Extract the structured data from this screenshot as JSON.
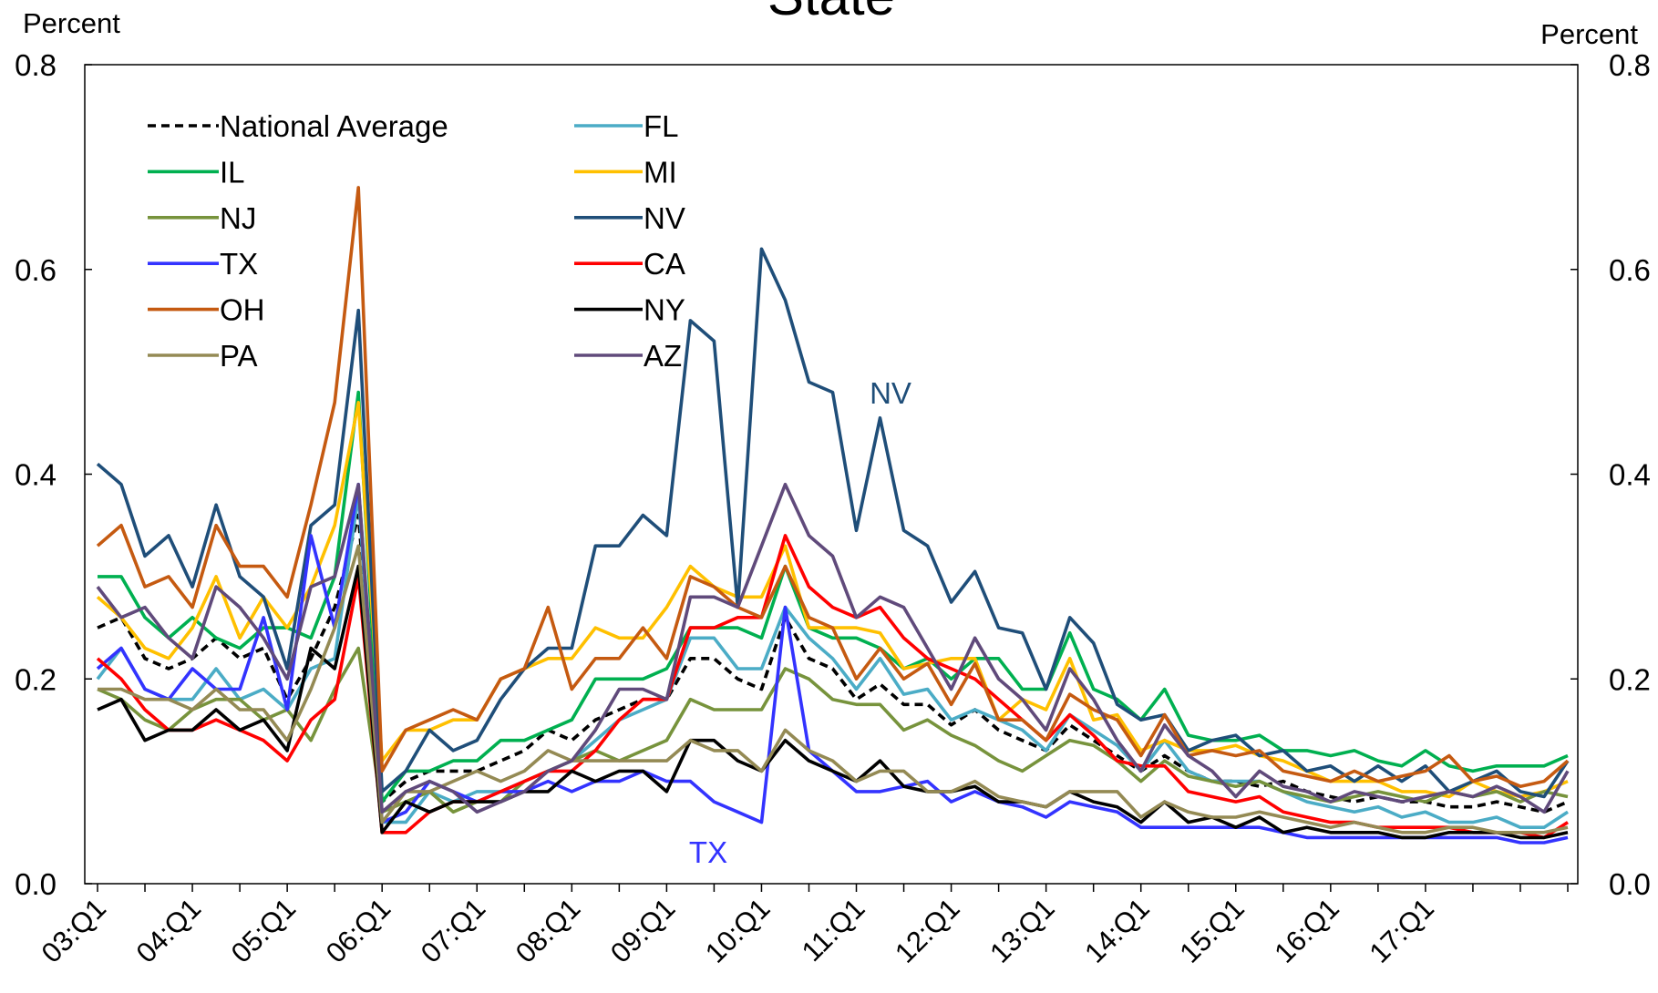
{
  "chart_data": {
    "type": "line",
    "title": "State",
    "y_label": "Percent",
    "y2_label": "Percent",
    "categories": [
      "03:Q1",
      null,
      null,
      null,
      "04:Q1",
      null,
      null,
      null,
      "05:Q1",
      null,
      null,
      null,
      "06:Q1",
      null,
      null,
      null,
      "07:Q1",
      null,
      null,
      null,
      "08:Q1",
      null,
      null,
      null,
      "09:Q1",
      null,
      null,
      null,
      "10:Q1",
      null,
      null,
      null,
      "11:Q1",
      null,
      null,
      null,
      "12:Q1",
      null,
      null,
      null,
      "13:Q1",
      null,
      null,
      null,
      "14:Q1",
      null,
      null,
      null,
      "15:Q1",
      null,
      null,
      null,
      "16:Q1",
      null,
      null,
      null,
      "17:Q1",
      null,
      null,
      null,
      null,
      null,
      null
    ],
    "ylim": [
      0,
      0.8
    ],
    "yticks": [
      {
        "value": 0,
        "label": "0.0"
      },
      0.2,
      0.4,
      0.6,
      0.8
    ],
    "y2lim": [
      0,
      0.8
    ],
    "y2ticks": [
      {
        "value": 0,
        "label": "0.0"
      },
      0.2,
      0.4,
      0.6,
      0.8
    ],
    "grid": false,
    "legend_position": "upper-left",
    "annotations": [
      {
        "text": "NV",
        "color": "#1f4e79"
      },
      {
        "text": "TX",
        "color": "#3333ff"
      }
    ],
    "series": [
      {
        "name": "National Average",
        "color": "#000000",
        "dashed": true,
        "values": [
          0.25,
          0.26,
          0.22,
          0.21,
          0.22,
          0.24,
          0.22,
          0.23,
          0.18,
          0.22,
          0.27,
          0.36,
          0.08,
          0.1,
          0.11,
          0.11,
          0.11,
          0.12,
          0.13,
          0.15,
          0.14,
          0.16,
          0.17,
          0.18,
          0.18,
          0.22,
          0.22,
          0.2,
          0.19,
          0.26,
          0.22,
          0.21,
          0.18,
          0.195,
          0.175,
          0.175,
          0.155,
          0.17,
          0.15,
          0.14,
          0.13,
          0.155,
          0.14,
          0.125,
          0.11,
          0.125,
          0.11,
          0.1,
          0.1,
          0.095,
          0.1,
          0.09,
          0.085,
          0.08,
          0.085,
          0.08,
          0.08,
          0.075,
          0.075,
          0.08,
          0.075,
          0.07,
          0.08
        ]
      },
      {
        "name": "FL",
        "color": "#4bacc6",
        "values": [
          0.2,
          0.23,
          0.19,
          0.18,
          0.18,
          0.21,
          0.18,
          0.19,
          0.17,
          0.21,
          0.22,
          0.38,
          0.06,
          0.06,
          0.09,
          0.08,
          0.09,
          0.09,
          0.1,
          0.11,
          0.12,
          0.14,
          0.16,
          0.17,
          0.18,
          0.24,
          0.24,
          0.21,
          0.21,
          0.27,
          0.24,
          0.22,
          0.19,
          0.22,
          0.185,
          0.19,
          0.16,
          0.17,
          0.16,
          0.15,
          0.13,
          0.165,
          0.15,
          0.135,
          0.11,
          0.14,
          0.11,
          0.1,
          0.1,
          0.1,
          0.09,
          0.08,
          0.075,
          0.07,
          0.075,
          0.065,
          0.07,
          0.06,
          0.06,
          0.065,
          0.055,
          0.055,
          0.07
        ]
      },
      {
        "name": "IL",
        "color": "#00b050",
        "values": [
          0.3,
          0.3,
          0.26,
          0.24,
          0.26,
          0.24,
          0.23,
          0.25,
          0.25,
          0.24,
          0.3,
          0.48,
          0.08,
          0.11,
          0.11,
          0.12,
          0.12,
          0.14,
          0.14,
          0.15,
          0.16,
          0.2,
          0.2,
          0.2,
          0.21,
          0.25,
          0.25,
          0.25,
          0.24,
          0.31,
          0.25,
          0.24,
          0.24,
          0.23,
          0.21,
          0.22,
          0.2,
          0.22,
          0.22,
          0.19,
          0.19,
          0.245,
          0.19,
          0.18,
          0.16,
          0.19,
          0.145,
          0.14,
          0.14,
          0.145,
          0.13,
          0.13,
          0.125,
          0.13,
          0.12,
          0.115,
          0.13,
          0.115,
          0.11,
          0.115,
          0.115,
          0.115,
          0.125
        ]
      },
      {
        "name": "MI",
        "color": "#ffc000",
        "values": [
          0.28,
          0.26,
          0.23,
          0.22,
          0.25,
          0.3,
          0.24,
          0.28,
          0.25,
          0.29,
          0.35,
          0.47,
          0.12,
          0.15,
          0.15,
          0.16,
          0.16,
          0.2,
          0.21,
          0.22,
          0.22,
          0.25,
          0.24,
          0.24,
          0.27,
          0.31,
          0.29,
          0.28,
          0.28,
          0.33,
          0.25,
          0.25,
          0.25,
          0.245,
          0.21,
          0.215,
          0.22,
          0.22,
          0.16,
          0.18,
          0.17,
          0.22,
          0.16,
          0.165,
          0.13,
          0.14,
          0.13,
          0.13,
          0.135,
          0.125,
          0.12,
          0.11,
          0.1,
          0.1,
          0.1,
          0.09,
          0.09,
          0.085,
          0.1,
          0.09,
          0.085,
          0.09,
          0.1
        ]
      },
      {
        "name": "NJ",
        "color": "#77933c",
        "values": [
          0.19,
          0.18,
          0.16,
          0.15,
          0.17,
          0.18,
          0.18,
          0.16,
          0.17,
          0.14,
          0.19,
          0.23,
          0.07,
          0.08,
          0.09,
          0.07,
          0.08,
          0.08,
          0.1,
          0.11,
          0.12,
          0.13,
          0.12,
          0.13,
          0.14,
          0.18,
          0.17,
          0.17,
          0.17,
          0.21,
          0.2,
          0.18,
          0.175,
          0.175,
          0.15,
          0.16,
          0.145,
          0.135,
          0.12,
          0.11,
          0.125,
          0.14,
          0.135,
          0.12,
          0.1,
          0.12,
          0.105,
          0.1,
          0.095,
          0.1,
          0.09,
          0.085,
          0.08,
          0.085,
          0.09,
          0.085,
          0.08,
          0.09,
          0.085,
          0.09,
          0.08,
          0.09,
          0.085
        ]
      },
      {
        "name": "NV",
        "color": "#1f4e79",
        "values": [
          0.41,
          0.39,
          0.32,
          0.34,
          0.29,
          0.37,
          0.3,
          0.28,
          0.21,
          0.35,
          0.37,
          0.56,
          0.09,
          0.11,
          0.15,
          0.13,
          0.14,
          0.18,
          0.21,
          0.23,
          0.23,
          0.33,
          0.33,
          0.36,
          0.34,
          0.55,
          0.53,
          0.27,
          0.62,
          0.57,
          0.49,
          0.48,
          0.345,
          0.455,
          0.345,
          0.33,
          0.275,
          0.305,
          0.25,
          0.245,
          0.19,
          0.26,
          0.235,
          0.175,
          0.16,
          0.165,
          0.13,
          0.14,
          0.145,
          0.125,
          0.13,
          0.11,
          0.115,
          0.1,
          0.115,
          0.1,
          0.115,
          0.09,
          0.1,
          0.11,
          0.09,
          0.085,
          0.12
        ]
      },
      {
        "name": "TX",
        "color": "#3333ff",
        "values": [
          0.21,
          0.23,
          0.19,
          0.18,
          0.21,
          0.19,
          0.19,
          0.26,
          0.17,
          0.34,
          0.25,
          0.39,
          0.06,
          0.07,
          0.1,
          0.09,
          0.08,
          0.09,
          0.09,
          0.1,
          0.09,
          0.1,
          0.1,
          0.11,
          0.1,
          0.1,
          0.08,
          0.07,
          0.06,
          0.27,
          0.13,
          0.11,
          0.09,
          0.09,
          0.095,
          0.1,
          0.08,
          0.09,
          0.08,
          0.075,
          0.065,
          0.08,
          0.075,
          0.07,
          0.055,
          0.055,
          0.055,
          0.055,
          0.055,
          0.055,
          0.05,
          0.045,
          0.045,
          0.045,
          0.045,
          0.045,
          0.045,
          0.045,
          0.045,
          0.045,
          0.04,
          0.04,
          0.045
        ]
      },
      {
        "name": "CA",
        "color": "#ff0000",
        "values": [
          0.22,
          0.2,
          0.17,
          0.15,
          0.15,
          0.16,
          0.15,
          0.14,
          0.12,
          0.16,
          0.18,
          0.3,
          0.05,
          0.05,
          0.07,
          0.08,
          0.08,
          0.09,
          0.1,
          0.11,
          0.11,
          0.13,
          0.16,
          0.18,
          0.18,
          0.25,
          0.25,
          0.26,
          0.26,
          0.34,
          0.29,
          0.27,
          0.26,
          0.27,
          0.24,
          0.22,
          0.21,
          0.2,
          0.18,
          0.16,
          0.14,
          0.165,
          0.145,
          0.12,
          0.115,
          0.115,
          0.09,
          0.085,
          0.08,
          0.085,
          0.07,
          0.065,
          0.06,
          0.06,
          0.055,
          0.055,
          0.055,
          0.055,
          0.05,
          0.05,
          0.05,
          0.045,
          0.06
        ]
      },
      {
        "name": "OH",
        "color": "#c55a11",
        "values": [
          0.33,
          0.35,
          0.29,
          0.3,
          0.27,
          0.35,
          0.31,
          0.31,
          0.28,
          0.37,
          0.47,
          0.68,
          0.11,
          0.15,
          0.16,
          0.17,
          0.16,
          0.2,
          0.21,
          0.27,
          0.19,
          0.22,
          0.22,
          0.25,
          0.22,
          0.3,
          0.29,
          0.27,
          0.26,
          0.31,
          0.26,
          0.25,
          0.2,
          0.23,
          0.2,
          0.215,
          0.175,
          0.215,
          0.16,
          0.16,
          0.14,
          0.185,
          0.17,
          0.16,
          0.125,
          0.165,
          0.125,
          0.13,
          0.125,
          0.13,
          0.11,
          0.105,
          0.1,
          0.11,
          0.1,
          0.105,
          0.11,
          0.125,
          0.1,
          0.105,
          0.095,
          0.1,
          0.12
        ]
      },
      {
        "name": "NY",
        "color": "#000000",
        "values": [
          0.17,
          0.18,
          0.14,
          0.15,
          0.15,
          0.17,
          0.15,
          0.16,
          0.13,
          0.23,
          0.21,
          0.31,
          0.05,
          0.08,
          0.07,
          0.08,
          0.08,
          0.08,
          0.09,
          0.09,
          0.11,
          0.1,
          0.11,
          0.11,
          0.09,
          0.14,
          0.14,
          0.12,
          0.11,
          0.14,
          0.12,
          0.11,
          0.1,
          0.12,
          0.095,
          0.09,
          0.09,
          0.095,
          0.08,
          0.08,
          0.075,
          0.09,
          0.08,
          0.075,
          0.06,
          0.08,
          0.06,
          0.065,
          0.055,
          0.065,
          0.05,
          0.055,
          0.05,
          0.05,
          0.05,
          0.045,
          0.045,
          0.05,
          0.05,
          0.05,
          0.045,
          0.045,
          0.05
        ]
      },
      {
        "name": "PA",
        "color": "#948a54",
        "values": [
          0.19,
          0.19,
          0.18,
          0.18,
          0.17,
          0.19,
          0.17,
          0.17,
          0.14,
          0.19,
          0.25,
          0.33,
          0.06,
          0.09,
          0.09,
          0.1,
          0.11,
          0.1,
          0.11,
          0.13,
          0.12,
          0.12,
          0.12,
          0.12,
          0.12,
          0.14,
          0.13,
          0.13,
          0.11,
          0.15,
          0.13,
          0.12,
          0.1,
          0.11,
          0.11,
          0.09,
          0.09,
          0.1,
          0.085,
          0.08,
          0.075,
          0.09,
          0.09,
          0.09,
          0.065,
          0.08,
          0.07,
          0.065,
          0.065,
          0.07,
          0.065,
          0.06,
          0.055,
          0.06,
          0.055,
          0.05,
          0.05,
          0.055,
          0.055,
          0.05,
          0.05,
          0.05,
          0.055
        ]
      },
      {
        "name": "AZ",
        "color": "#604a7b",
        "values": [
          0.29,
          0.26,
          0.27,
          0.24,
          0.22,
          0.29,
          0.27,
          0.24,
          0.2,
          0.29,
          0.3,
          0.39,
          0.07,
          0.09,
          0.1,
          0.09,
          0.07,
          0.08,
          0.09,
          0.11,
          0.12,
          0.15,
          0.19,
          0.19,
          0.18,
          0.28,
          0.28,
          0.27,
          0.33,
          0.39,
          0.34,
          0.32,
          0.26,
          0.28,
          0.27,
          0.23,
          0.19,
          0.24,
          0.2,
          0.18,
          0.15,
          0.21,
          0.18,
          0.14,
          0.11,
          0.155,
          0.125,
          0.11,
          0.085,
          0.11,
          0.095,
          0.09,
          0.08,
          0.09,
          0.085,
          0.08,
          0.085,
          0.09,
          0.085,
          0.095,
          0.085,
          0.07,
          0.11
        ]
      }
    ]
  }
}
